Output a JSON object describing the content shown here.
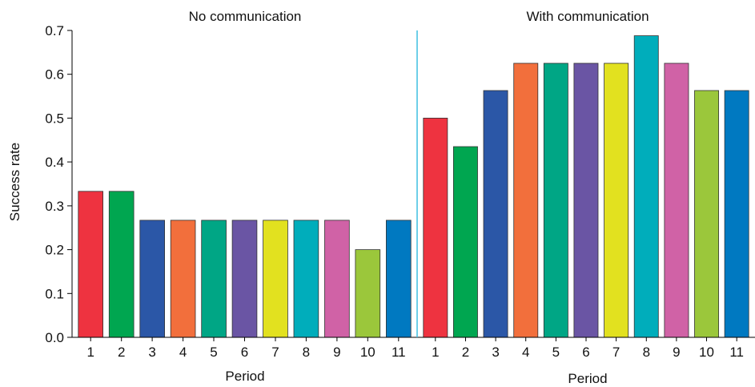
{
  "chart_data": {
    "type": "bar",
    "ylabel": "Success rate",
    "ylim": [
      0,
      0.7
    ],
    "yticks": [
      "0.0",
      "0.1",
      "0.2",
      "0.3",
      "0.4",
      "0.5",
      "0.6",
      "0.7"
    ],
    "grid": false,
    "panels": [
      {
        "title": "No communication",
        "xlabel": "Period",
        "categories": [
          "1",
          "2",
          "3",
          "4",
          "5",
          "6",
          "7",
          "8",
          "9",
          "10",
          "11"
        ],
        "values": [
          0.333,
          0.333,
          0.267,
          0.267,
          0.267,
          0.267,
          0.267,
          0.267,
          0.267,
          0.2,
          0.267
        ]
      },
      {
        "title": "With communication",
        "xlabel": "Period",
        "categories": [
          "1",
          "2",
          "3",
          "4",
          "5",
          "6",
          "7",
          "8",
          "9",
          "10",
          "11"
        ],
        "values": [
          0.5,
          0.435,
          0.563,
          0.625,
          0.625,
          0.625,
          0.625,
          0.688,
          0.625,
          0.563,
          0.563
        ]
      }
    ],
    "bar_colors": [
      "#ee3340",
      "#00a650",
      "#2b57a7",
      "#f26f3c",
      "#00a685",
      "#6a55a4",
      "#e2e11f",
      "#00adbb",
      "#d062a6",
      "#9bc73b",
      "#0079c1"
    ],
    "divider_color": "#3fbfe0"
  }
}
